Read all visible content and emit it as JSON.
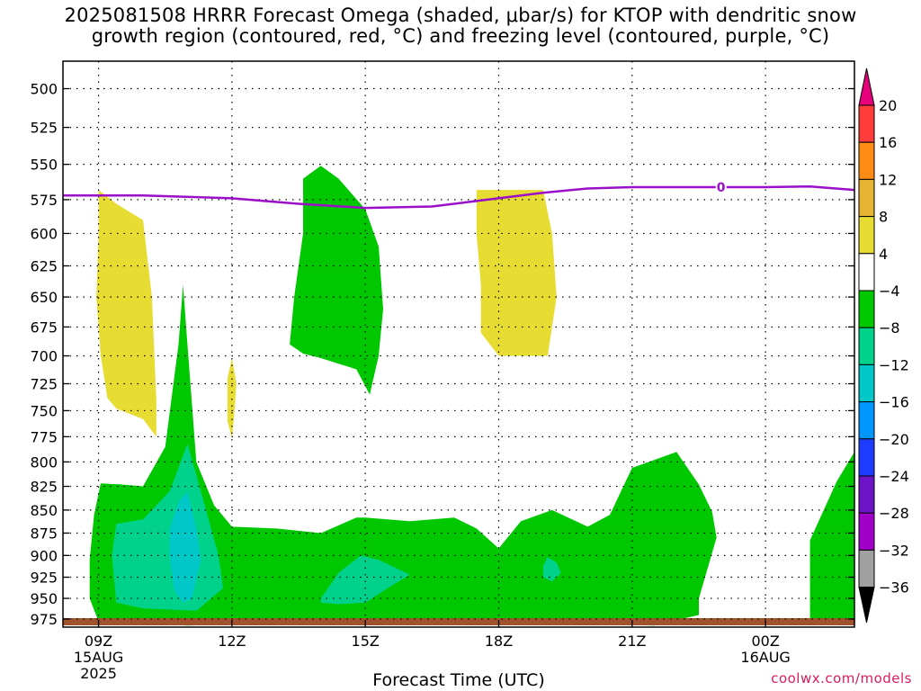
{
  "title": {
    "line1": "2025081508 HRRR Forecast Omega (shaded, μbar/s) for KTOP with dendritic snow",
    "line2": "growth region (contoured, red, °C) and freezing level (contoured, purple, °C)"
  },
  "credit": "coolwx.com/models",
  "colors": {
    "freezing_level": "#9b0fc8",
    "omega_warm": "#e6dc32",
    "omega_m4_m8": "#00c800",
    "omega_m8_m12": "#00d28c",
    "omega_m12_m16": "#00c8c8",
    "ground": "#a0522d"
  },
  "chart_data": {
    "type": "contour",
    "xlabel": "Forecast Time (UTC)",
    "ylabel": "",
    "x_ticks": [
      {
        "label": "09Z",
        "sub": [
          "15AUG",
          "2025"
        ],
        "hour": 9
      },
      {
        "label": "12Z",
        "sub": [],
        "hour": 12
      },
      {
        "label": "15Z",
        "sub": [],
        "hour": 15
      },
      {
        "label": "18Z",
        "sub": [],
        "hour": 18
      },
      {
        "label": "21Z",
        "sub": [],
        "hour": 21
      },
      {
        "label": "00Z",
        "sub": [
          "16AUG"
        ],
        "hour": 24
      }
    ],
    "xlim_hours": [
      8.2,
      26.0
    ],
    "y_ticks": [
      500,
      525,
      550,
      575,
      600,
      625,
      650,
      675,
      700,
      725,
      750,
      775,
      800,
      825,
      850,
      875,
      900,
      925,
      950,
      975
    ],
    "ylim_mb": [
      483,
      985
    ],
    "y_scale": "log-pressure",
    "grid": true,
    "colorbar": {
      "labels": [
        "20",
        "16",
        "12",
        "8",
        "4",
        "−4",
        "−8",
        "−12",
        "−16",
        "−20",
        "−24",
        "−28",
        "−32",
        "−36"
      ],
      "bins": [
        "#ff3c3c",
        "#ff8c14",
        "#e6b432",
        "#e6dc32",
        "#ffffff",
        "#00c800",
        "#00d28c",
        "#00c8c8",
        "#0096ff",
        "#1e3cff",
        "#6e14c8",
        "#a000c8",
        "#a0a0a0"
      ],
      "top_arrow": "#e6007a",
      "bottom_arrow": "#000000"
    },
    "freezing_level": {
      "contour_label": "0",
      "points": [
        [
          8.2,
          572
        ],
        [
          10,
          572
        ],
        [
          12,
          574
        ],
        [
          13.5,
          578
        ],
        [
          15,
          581
        ],
        [
          16.5,
          580
        ],
        [
          17.5,
          576
        ],
        [
          19,
          570
        ],
        [
          20,
          567
        ],
        [
          21,
          566
        ],
        [
          23,
          566
        ],
        [
          24,
          566
        ],
        [
          25,
          565.5
        ],
        [
          26,
          568
        ]
      ]
    },
    "regions": [
      {
        "fill": "omega_m4_m8",
        "points": [
          [
            8.8,
            905
          ],
          [
            8.9,
            855
          ],
          [
            9.05,
            822
          ],
          [
            9.5,
            823
          ],
          [
            10,
            825
          ],
          [
            10.5,
            785
          ],
          [
            10.8,
            690
          ],
          [
            10.9,
            640
          ],
          [
            11.0,
            690
          ],
          [
            11.2,
            800
          ],
          [
            11.6,
            845
          ],
          [
            12.0,
            868
          ],
          [
            13,
            870
          ],
          [
            14,
            875
          ],
          [
            14.8,
            858
          ],
          [
            15,
            858
          ],
          [
            16,
            862
          ],
          [
            17,
            858
          ],
          [
            17.5,
            870
          ],
          [
            18,
            892
          ],
          [
            18.5,
            862
          ],
          [
            19.2,
            850
          ],
          [
            20,
            868
          ],
          [
            20.5,
            855
          ],
          [
            21,
            806
          ],
          [
            22,
            790
          ],
          [
            22.5,
            823
          ],
          [
            22.8,
            852
          ],
          [
            22.9,
            880
          ],
          [
            22.5,
            950
          ],
          [
            22.5,
            970
          ],
          [
            21.5,
            983
          ],
          [
            19,
            980
          ],
          [
            17,
            980
          ],
          [
            15,
            980
          ],
          [
            13,
            980
          ],
          [
            11,
            983
          ],
          [
            9,
            978
          ],
          [
            8.8,
            950
          ]
        ]
      },
      {
        "fill": "omega_m4_m8",
        "points": [
          [
            13.6,
            560
          ],
          [
            14,
            551
          ],
          [
            14.4,
            560
          ],
          [
            15,
            582
          ],
          [
            15.3,
            610
          ],
          [
            15.4,
            660
          ],
          [
            15.3,
            700
          ],
          [
            15.1,
            735
          ],
          [
            14.8,
            712
          ],
          [
            14,
            702
          ],
          [
            13.6,
            698
          ],
          [
            13.3,
            690
          ],
          [
            13.4,
            650
          ],
          [
            13.6,
            600
          ]
        ]
      },
      {
        "fill": "omega_m4_m8",
        "points": [
          [
            25.0,
            883
          ],
          [
            25.6,
            820
          ],
          [
            26,
            790
          ],
          [
            26,
            975
          ],
          [
            25.0,
            975
          ]
        ]
      },
      {
        "fill": "omega_m8_m12",
        "points": [
          [
            9.4,
            865
          ],
          [
            10,
            860
          ],
          [
            10.6,
            830
          ],
          [
            11.0,
            782
          ],
          [
            11.3,
            830
          ],
          [
            11.7,
            900
          ],
          [
            11.8,
            938
          ],
          [
            11.2,
            965
          ],
          [
            10,
            962
          ],
          [
            9.4,
            955
          ],
          [
            9.3,
            900
          ]
        ]
      },
      {
        "fill": "omega_m8_m12",
        "points": [
          [
            14.0,
            950
          ],
          [
            14.4,
            920
          ],
          [
            14.9,
            900
          ],
          [
            15.3,
            905
          ],
          [
            15.8,
            917
          ],
          [
            16,
            922
          ],
          [
            15.5,
            938
          ],
          [
            15,
            955
          ],
          [
            14.4,
            957
          ],
          [
            14,
            955
          ]
        ]
      },
      {
        "fill": "omega_m8_m12",
        "points": [
          [
            19.0,
            912
          ],
          [
            19.1,
            902
          ],
          [
            19.3,
            908
          ],
          [
            19.4,
            920
          ],
          [
            19.2,
            930
          ],
          [
            19.0,
            925
          ]
        ]
      },
      {
        "fill": "omega_m12_m16",
        "points": [
          [
            10.6,
            870
          ],
          [
            10.8,
            842
          ],
          [
            11.0,
            830
          ],
          [
            11.2,
            870
          ],
          [
            11.3,
            905
          ],
          [
            11.1,
            950
          ],
          [
            10.9,
            955
          ],
          [
            10.7,
            940
          ],
          [
            10.6,
            900
          ]
        ]
      },
      {
        "fill": "omega_warm",
        "points": [
          [
            9.0,
            568
          ],
          [
            9.4,
            578
          ],
          [
            10,
            590
          ],
          [
            10.2,
            650
          ],
          [
            10.3,
            740
          ],
          [
            10.3,
            775
          ],
          [
            10,
            758
          ],
          [
            9.4,
            748
          ],
          [
            9.2,
            738
          ],
          [
            9.05,
            700
          ],
          [
            8.95,
            650
          ],
          [
            9.0,
            600
          ]
        ]
      },
      {
        "fill": "omega_warm",
        "points": [
          [
            11.9,
            720
          ],
          [
            12.0,
            702
          ],
          [
            12.1,
            725
          ],
          [
            12.05,
            755
          ],
          [
            12.0,
            776
          ],
          [
            11.9,
            760
          ]
        ]
      },
      {
        "fill": "omega_warm",
        "points": [
          [
            17.5,
            568
          ],
          [
            19.0,
            568
          ],
          [
            19.2,
            600
          ],
          [
            19.3,
            650
          ],
          [
            19.1,
            700
          ],
          [
            18.3,
            700
          ],
          [
            18.0,
            700
          ],
          [
            17.6,
            680
          ],
          [
            17.6,
            640
          ],
          [
            17.5,
            600
          ]
        ]
      }
    ]
  }
}
